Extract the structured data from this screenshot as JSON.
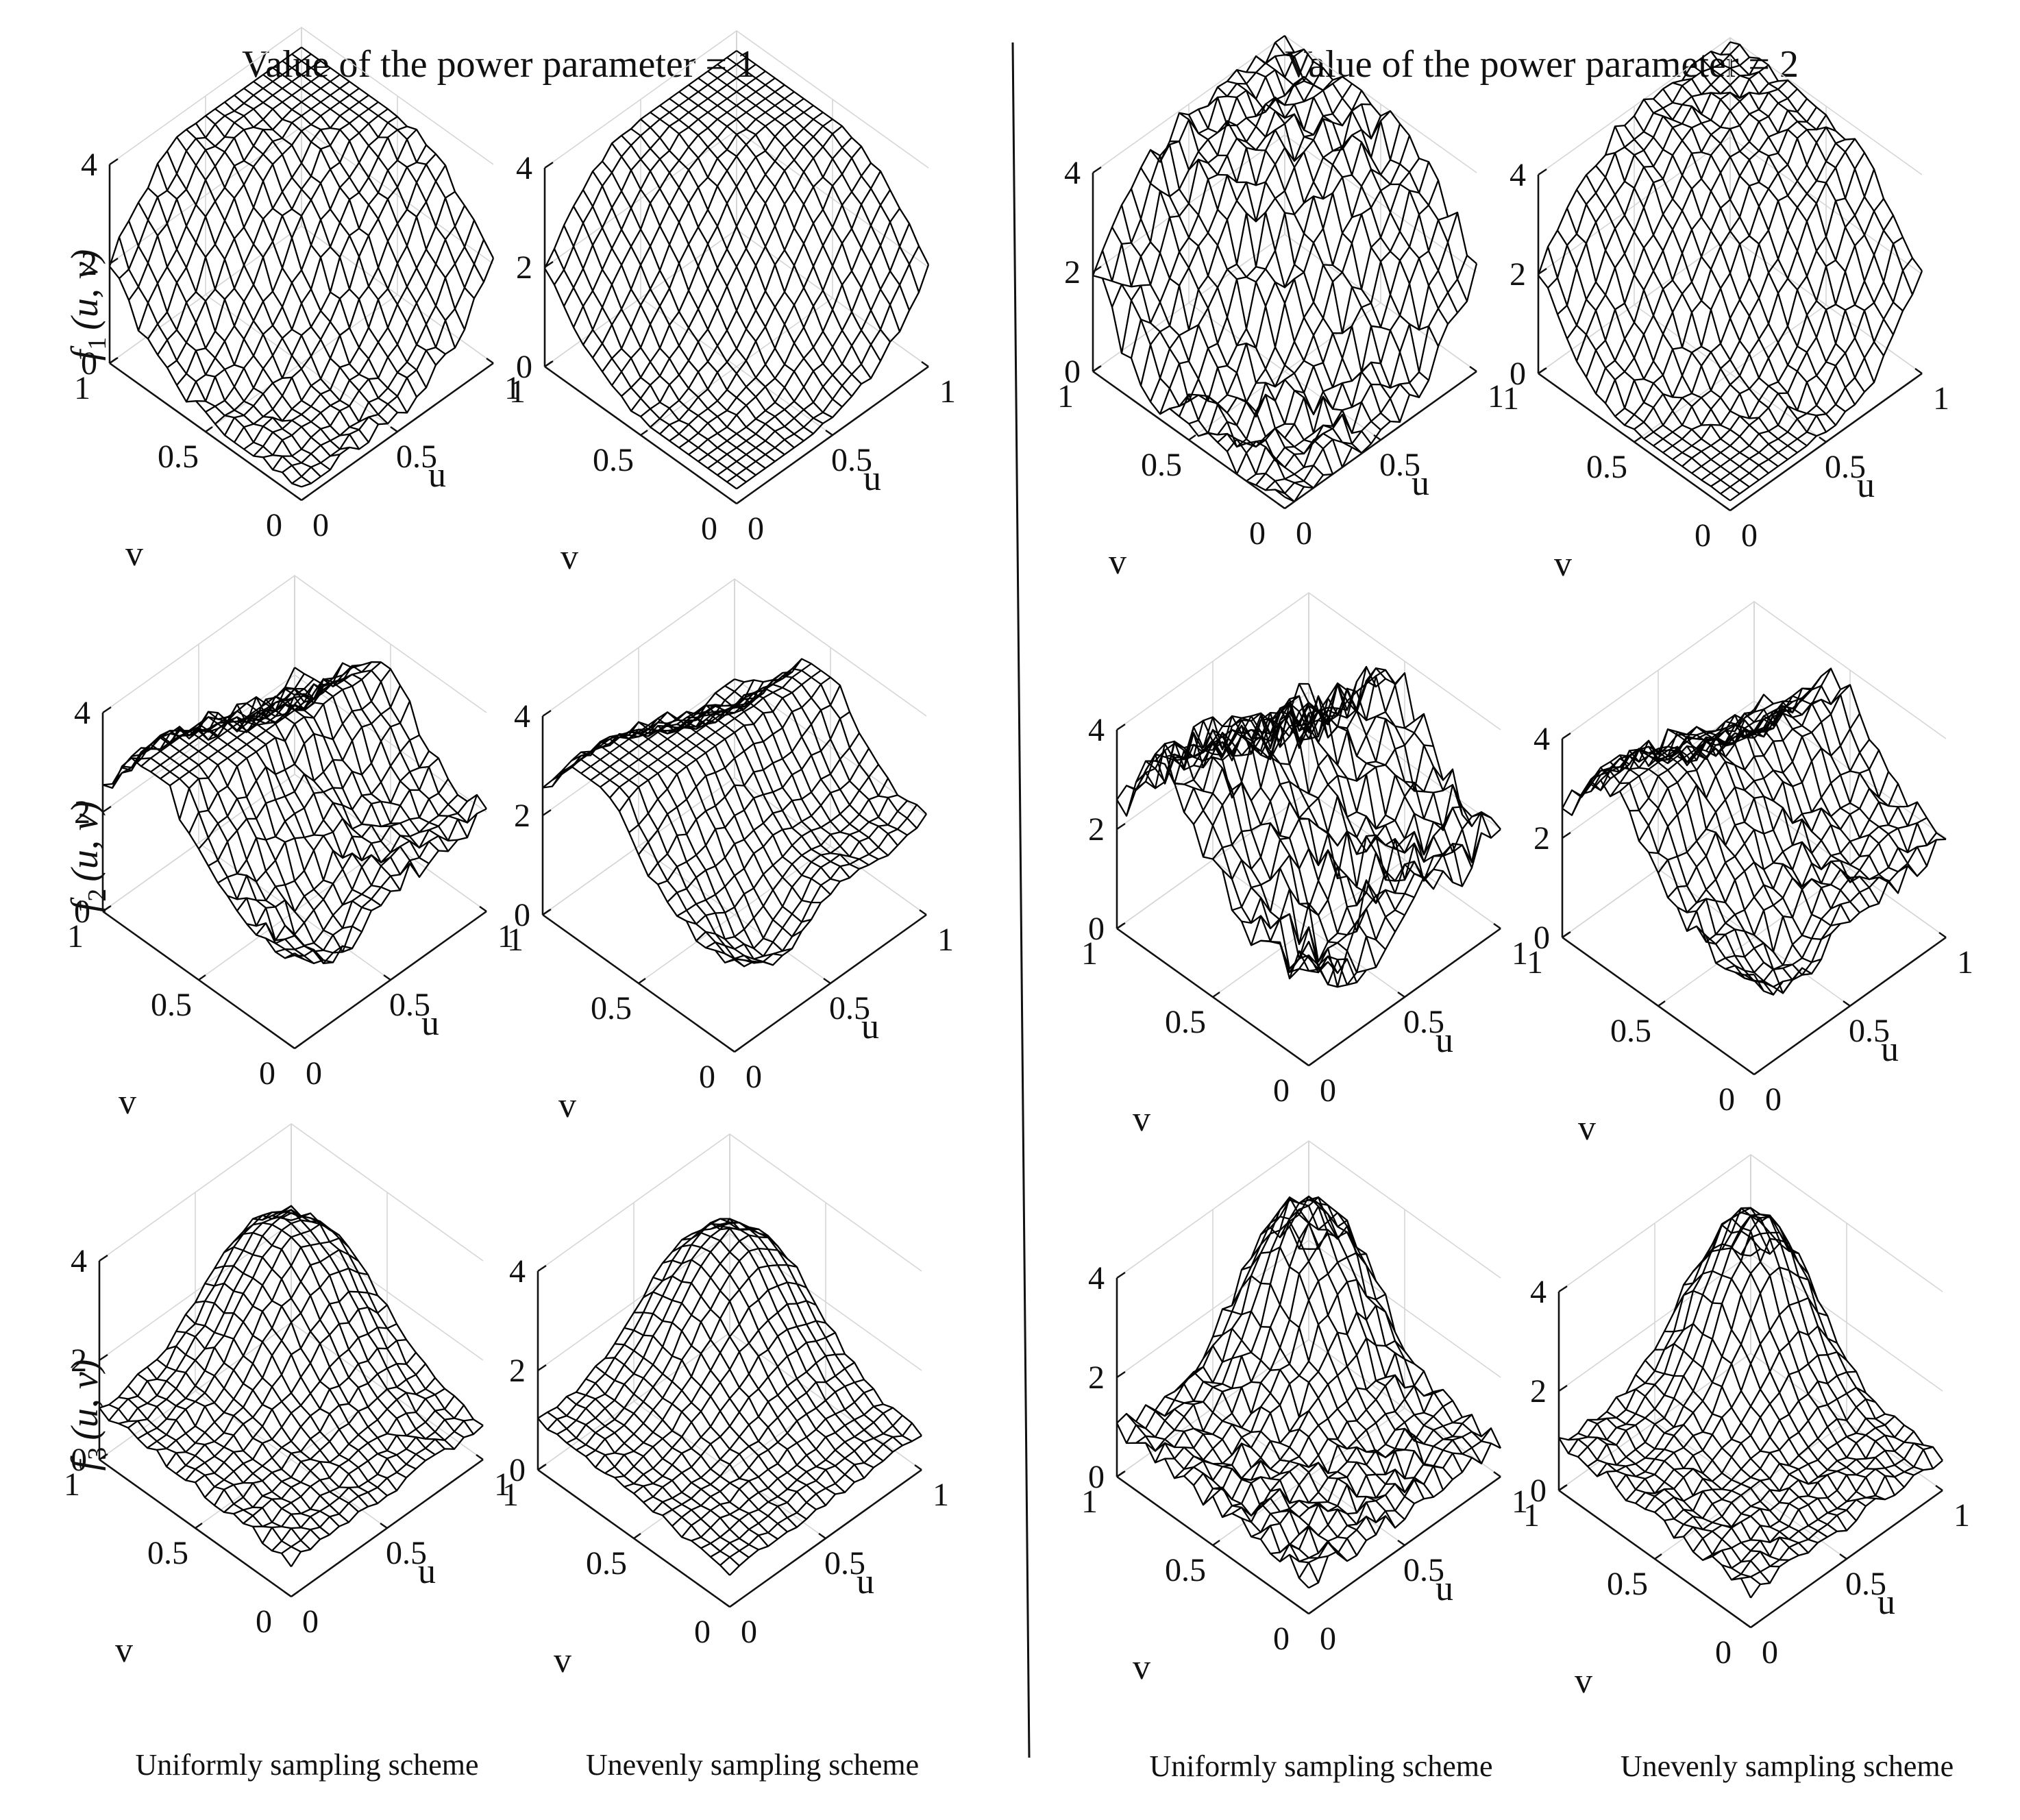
{
  "figure": {
    "headers": [
      "Value of the power parameter = 1",
      "Value of the power parameter = 2"
    ],
    "footers": [
      "Uniformly sampling scheme",
      "Unevenly sampling scheme",
      "Uniformly sampling scheme",
      "Unevenly sampling scheme"
    ],
    "row_labels": [
      {
        "f": "f",
        "sub": "1",
        "args": "(u, v)"
      },
      {
        "f": "f",
        "sub": "2",
        "args": "(u, v)"
      },
      {
        "f": "f",
        "sub": "3",
        "args": "(u, v)"
      }
    ]
  },
  "chart_data": [
    {
      "type": "surface",
      "function": "f1",
      "power_parameter": 1,
      "sampling": "uniform",
      "xlabel": "u",
      "ylabel": "v",
      "zlabel": "f1(u,v)",
      "xlim": [
        0,
        1
      ],
      "ylim": [
        0,
        1
      ],
      "zlim": [
        0,
        4
      ],
      "xticks": [
        "0",
        "0.5",
        "1"
      ],
      "yticks": [
        "0",
        "0.5",
        "1"
      ],
      "zticks": [
        "0",
        "2",
        "4"
      ],
      "grid": true,
      "mesh_resolution": 20,
      "z_range": [
        0.2,
        3.6
      ],
      "noise": 0.15
    },
    {
      "type": "surface",
      "function": "f1",
      "power_parameter": 1,
      "sampling": "uneven",
      "xlabel": "u",
      "ylabel": "v",
      "zlabel": "f1(u,v)",
      "xlim": [
        0,
        1
      ],
      "ylim": [
        0,
        1
      ],
      "zlim": [
        0,
        4
      ],
      "xticks": [
        "0",
        "0.5",
        "1"
      ],
      "yticks": [
        "0",
        "0.5",
        "1"
      ],
      "zticks": [
        "0",
        "2",
        "4"
      ],
      "grid": true,
      "mesh_resolution": 20,
      "z_range": [
        0.3,
        3.6
      ],
      "noise": 0.08
    },
    {
      "type": "surface",
      "function": "f1",
      "power_parameter": 2,
      "sampling": "uniform",
      "xlabel": "u",
      "ylabel": "v",
      "zlabel": "f1(u,v)",
      "xlim": [
        0,
        1
      ],
      "ylim": [
        0,
        1
      ],
      "zlim": [
        0,
        4
      ],
      "xticks": [
        "0",
        "0.5",
        "1"
      ],
      "yticks": [
        "0",
        "0.5",
        "1"
      ],
      "zticks": [
        "0",
        "2",
        "4"
      ],
      "grid": true,
      "mesh_resolution": 20,
      "z_range": [
        0.0,
        4.0
      ],
      "noise": 0.35
    },
    {
      "type": "surface",
      "function": "f1",
      "power_parameter": 2,
      "sampling": "uneven",
      "xlabel": "u",
      "ylabel": "v",
      "zlabel": "f1(u,v)",
      "xlim": [
        0,
        1
      ],
      "ylim": [
        0,
        1
      ],
      "zlim": [
        0,
        4
      ],
      "xticks": [
        "0",
        "0.5",
        "1"
      ],
      "yticks": [
        "0",
        "0.5",
        "1"
      ],
      "zticks": [
        "0",
        "2",
        "4"
      ],
      "grid": true,
      "mesh_resolution": 20,
      "z_range": [
        0.2,
        4.0
      ],
      "noise": 0.18
    },
    {
      "type": "surface",
      "function": "f2",
      "power_parameter": 1,
      "sampling": "uniform",
      "xlabel": "u",
      "ylabel": "v",
      "zlabel": "f2(u,v)",
      "xlim": [
        0,
        1
      ],
      "ylim": [
        0,
        1
      ],
      "zlim": [
        0,
        4
      ],
      "xticks": [
        "0",
        "0.5",
        "1"
      ],
      "yticks": [
        "0",
        "0.5",
        "1"
      ],
      "zticks": [
        "0",
        "2",
        "4"
      ],
      "grid": true,
      "mesh_resolution": 20,
      "z_range": [
        0.5,
        3.5
      ],
      "noise": 0.2
    },
    {
      "type": "surface",
      "function": "f2",
      "power_parameter": 1,
      "sampling": "uneven",
      "xlabel": "u",
      "ylabel": "v",
      "zlabel": "f2(u,v)",
      "xlim": [
        0,
        1
      ],
      "ylim": [
        0,
        1
      ],
      "zlim": [
        0,
        4
      ],
      "xticks": [
        "0",
        "0.5",
        "1"
      ],
      "yticks": [
        "0",
        "0.5",
        "1"
      ],
      "zticks": [
        "0",
        "2",
        "4"
      ],
      "grid": true,
      "mesh_resolution": 20,
      "z_range": [
        0.6,
        3.4
      ],
      "noise": 0.1
    },
    {
      "type": "surface",
      "function": "f2",
      "power_parameter": 2,
      "sampling": "uniform",
      "xlabel": "u",
      "ylabel": "v",
      "zlabel": "f2(u,v)",
      "xlim": [
        0,
        1
      ],
      "ylim": [
        0,
        1
      ],
      "zlim": [
        0,
        4
      ],
      "xticks": [
        "0",
        "0.5",
        "1"
      ],
      "yticks": [
        "0",
        "0.5",
        "1"
      ],
      "zticks": [
        "0",
        "2",
        "4"
      ],
      "grid": true,
      "mesh_resolution": 20,
      "z_range": [
        0.0,
        4.0
      ],
      "noise": 0.45
    },
    {
      "type": "surface",
      "function": "f2",
      "power_parameter": 2,
      "sampling": "uneven",
      "xlabel": "u",
      "ylabel": "v",
      "zlabel": "f2(u,v)",
      "xlim": [
        0,
        1
      ],
      "ylim": [
        0,
        1
      ],
      "zlim": [
        0,
        4
      ],
      "xticks": [
        "0",
        "0.5",
        "1"
      ],
      "yticks": [
        "0",
        "0.5",
        "1"
      ],
      "zticks": [
        "0",
        "2",
        "4"
      ],
      "grid": true,
      "mesh_resolution": 20,
      "z_range": [
        0.3,
        3.8
      ],
      "noise": 0.25
    },
    {
      "type": "surface",
      "function": "f3",
      "power_parameter": 1,
      "sampling": "uniform",
      "xlabel": "u",
      "ylabel": "v",
      "zlabel": "f3(u,v)",
      "xlim": [
        0,
        1
      ],
      "ylim": [
        0,
        1
      ],
      "zlim": [
        0,
        4
      ],
      "xticks": [
        "0",
        "0.5",
        "1"
      ],
      "yticks": [
        "0",
        "0.5",
        "1"
      ],
      "zticks": [
        "0",
        "2",
        "4"
      ],
      "grid": true,
      "mesh_resolution": 20,
      "z_range": [
        0.5,
        3.1
      ],
      "noise": 0.1
    },
    {
      "type": "surface",
      "function": "f3",
      "power_parameter": 1,
      "sampling": "uneven",
      "xlabel": "u",
      "ylabel": "v",
      "zlabel": "f3(u,v)",
      "xlim": [
        0,
        1
      ],
      "ylim": [
        0,
        1
      ],
      "zlim": [
        0,
        4
      ],
      "xticks": [
        "0",
        "0.5",
        "1"
      ],
      "yticks": [
        "0",
        "0.5",
        "1"
      ],
      "zticks": [
        "0",
        "2",
        "4"
      ],
      "grid": true,
      "mesh_resolution": 20,
      "z_range": [
        0.5,
        3.3
      ],
      "noise": 0.07
    },
    {
      "type": "surface",
      "function": "f3",
      "power_parameter": 2,
      "sampling": "uniform",
      "xlabel": "u",
      "ylabel": "v",
      "zlabel": "f3(u,v)",
      "xlim": [
        0,
        1
      ],
      "ylim": [
        0,
        1
      ],
      "zlim": [
        0,
        4
      ],
      "xticks": [
        "0",
        "0.5",
        "1"
      ],
      "yticks": [
        "0",
        "0.5",
        "1"
      ],
      "zticks": [
        "0",
        "2",
        "4"
      ],
      "grid": true,
      "mesh_resolution": 20,
      "z_range": [
        0.4,
        4.0
      ],
      "noise": 0.22
    },
    {
      "type": "surface",
      "function": "f3",
      "power_parameter": 2,
      "sampling": "uneven",
      "xlabel": "u",
      "ylabel": "v",
      "zlabel": "f3(u,v)",
      "xlim": [
        0,
        1
      ],
      "ylim": [
        0,
        1
      ],
      "zlim": [
        0,
        4
      ],
      "xticks": [
        "0",
        "0.5",
        "1"
      ],
      "yticks": [
        "0",
        "0.5",
        "1"
      ],
      "zticks": [
        "0",
        "2",
        "4"
      ],
      "grid": true,
      "mesh_resolution": 20,
      "z_range": [
        0.4,
        4.0
      ],
      "noise": 0.14
    }
  ]
}
